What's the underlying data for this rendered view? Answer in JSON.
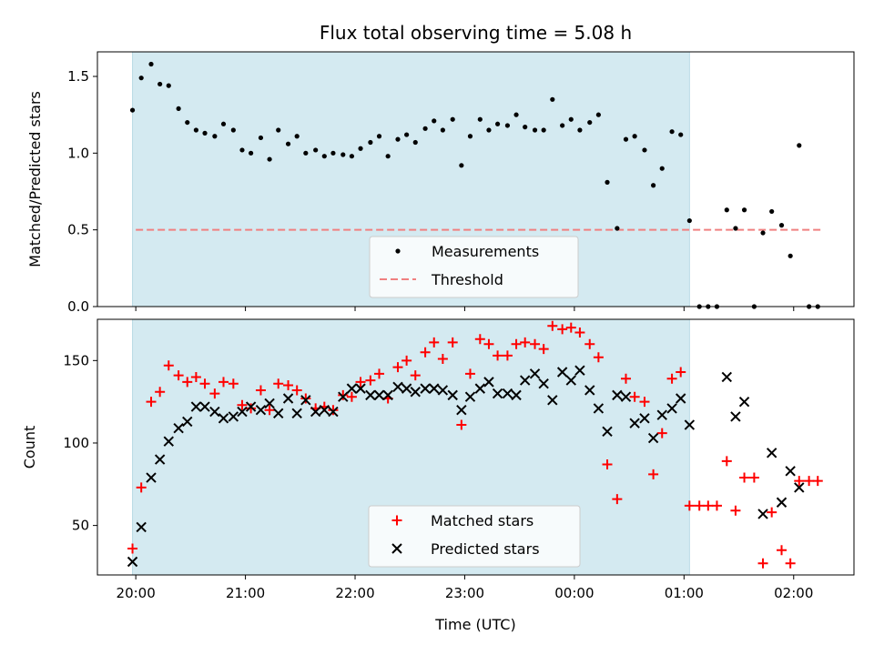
{
  "colors": {
    "span": "#d4eaf1",
    "threshold": "#f08080",
    "matched": "#ff0000",
    "predicted": "#000000",
    "points": "#000000"
  },
  "chart_data": [
    {
      "type": "scatter",
      "title": "Flux total observing time = 5.08 h",
      "ylabel": "Matched/Predicted stars",
      "xlabel": "",
      "x_unit": "hours since 20:00 UTC",
      "xlim": [
        -0.35,
        6.55
      ],
      "ylim": [
        0,
        1.66
      ],
      "yticks": [
        {
          "v": 0,
          "label": "0.0"
        },
        {
          "v": 0.5,
          "label": "0.5"
        },
        {
          "v": 1.0,
          "label": "1.0"
        },
        {
          "v": 1.5,
          "label": "1.5"
        }
      ],
      "xticks_hours": [
        0,
        1,
        2,
        3,
        4,
        5,
        6
      ],
      "observing_span": [
        -0.03,
        5.05
      ],
      "threshold": 0.5,
      "threshold_x": [
        0,
        6.25
      ],
      "legend": {
        "position": "bottom-center",
        "entries": [
          "Measurements",
          "Threshold"
        ]
      },
      "series": [
        {
          "name": "Measurements",
          "points": [
            [
              -0.03,
              1.28
            ],
            [
              0.05,
              1.49
            ],
            [
              0.14,
              1.58
            ],
            [
              0.22,
              1.45
            ],
            [
              0.3,
              1.44
            ],
            [
              0.39,
              1.29
            ],
            [
              0.47,
              1.2
            ],
            [
              0.55,
              1.15
            ],
            [
              0.63,
              1.13
            ],
            [
              0.72,
              1.11
            ],
            [
              0.8,
              1.19
            ],
            [
              0.89,
              1.15
            ],
            [
              0.97,
              1.02
            ],
            [
              1.05,
              1.0
            ],
            [
              1.14,
              1.1
            ],
            [
              1.22,
              0.96
            ],
            [
              1.3,
              1.15
            ],
            [
              1.39,
              1.06
            ],
            [
              1.47,
              1.11
            ],
            [
              1.55,
              1.0
            ],
            [
              1.64,
              1.02
            ],
            [
              1.72,
              0.98
            ],
            [
              1.8,
              1.0
            ],
            [
              1.89,
              0.99
            ],
            [
              1.97,
              0.98
            ],
            [
              2.05,
              1.03
            ],
            [
              2.14,
              1.07
            ],
            [
              2.22,
              1.11
            ],
            [
              2.3,
              0.98
            ],
            [
              2.39,
              1.09
            ],
            [
              2.47,
              1.12
            ],
            [
              2.55,
              1.07
            ],
            [
              2.64,
              1.16
            ],
            [
              2.72,
              1.21
            ],
            [
              2.8,
              1.15
            ],
            [
              2.89,
              1.22
            ],
            [
              2.97,
              0.92
            ],
            [
              3.05,
              1.11
            ],
            [
              3.14,
              1.22
            ],
            [
              3.22,
              1.15
            ],
            [
              3.3,
              1.19
            ],
            [
              3.39,
              1.18
            ],
            [
              3.47,
              1.25
            ],
            [
              3.55,
              1.17
            ],
            [
              3.64,
              1.15
            ],
            [
              3.72,
              1.15
            ],
            [
              3.8,
              1.35
            ],
            [
              3.89,
              1.18
            ],
            [
              3.97,
              1.22
            ],
            [
              4.05,
              1.15
            ],
            [
              4.14,
              1.2
            ],
            [
              4.22,
              1.25
            ],
            [
              4.3,
              0.81
            ],
            [
              4.39,
              0.51
            ],
            [
              4.47,
              1.09
            ],
            [
              4.55,
              1.11
            ],
            [
              4.64,
              1.02
            ],
            [
              4.72,
              0.79
            ],
            [
              4.8,
              0.9
            ],
            [
              4.89,
              1.14
            ],
            [
              4.97,
              1.12
            ],
            [
              5.05,
              0.56
            ],
            [
              5.14,
              0.0
            ],
            [
              5.22,
              0.0
            ],
            [
              5.3,
              0.0
            ],
            [
              5.39,
              0.63
            ],
            [
              5.47,
              0.51
            ],
            [
              5.55,
              0.63
            ],
            [
              5.64,
              0.0
            ],
            [
              5.72,
              0.48
            ],
            [
              5.8,
              0.62
            ],
            [
              5.89,
              0.53
            ],
            [
              5.97,
              0.33
            ],
            [
              6.05,
              1.05
            ],
            [
              6.14,
              0.0
            ],
            [
              6.22,
              0.0
            ]
          ]
        }
      ]
    },
    {
      "type": "scatter",
      "title": "",
      "ylabel": "Count",
      "xlabel": "Time (UTC)",
      "x_unit": "hours since 20:00 UTC",
      "xlim": [
        -0.35,
        6.55
      ],
      "ylim": [
        20,
        175
      ],
      "yticks": [
        {
          "v": 50,
          "label": "50"
        },
        {
          "v": 100,
          "label": "100"
        },
        {
          "v": 150,
          "label": "150"
        }
      ],
      "xtick_labels": [
        "20:00",
        "21:00",
        "22:00",
        "23:00",
        "00:00",
        "01:00",
        "02:00"
      ],
      "observing_span": [
        -0.03,
        5.05
      ],
      "legend": {
        "position": "bottom-center",
        "entries": [
          "Matched stars",
          "Predicted stars"
        ]
      },
      "series": [
        {
          "name": "Matched stars",
          "marker": "plus",
          "points": [
            [
              -0.03,
              36
            ],
            [
              0.05,
              73
            ],
            [
              0.14,
              125
            ],
            [
              0.22,
              131
            ],
            [
              0.3,
              147
            ],
            [
              0.39,
              141
            ],
            [
              0.47,
              137
            ],
            [
              0.55,
              140
            ],
            [
              0.63,
              136
            ],
            [
              0.72,
              130
            ],
            [
              0.8,
              137
            ],
            [
              0.89,
              136
            ],
            [
              0.97,
              123
            ],
            [
              1.05,
              121
            ],
            [
              1.14,
              132
            ],
            [
              1.22,
              120
            ],
            [
              1.3,
              136
            ],
            [
              1.39,
              135
            ],
            [
              1.47,
              132
            ],
            [
              1.55,
              127
            ],
            [
              1.64,
              121
            ],
            [
              1.72,
              122
            ],
            [
              1.8,
              120
            ],
            [
              1.89,
              129
            ],
            [
              1.97,
              128
            ],
            [
              2.05,
              137
            ],
            [
              2.14,
              138
            ],
            [
              2.22,
              142
            ],
            [
              2.3,
              127
            ],
            [
              2.39,
              146
            ],
            [
              2.47,
              150
            ],
            [
              2.55,
              141
            ],
            [
              2.64,
              155
            ],
            [
              2.72,
              161
            ],
            [
              2.8,
              151
            ],
            [
              2.89,
              161
            ],
            [
              2.97,
              111
            ],
            [
              3.05,
              142
            ],
            [
              3.14,
              163
            ],
            [
              3.22,
              160
            ],
            [
              3.3,
              153
            ],
            [
              3.39,
              153
            ],
            [
              3.47,
              160
            ],
            [
              3.55,
              161
            ],
            [
              3.64,
              160
            ],
            [
              3.72,
              157
            ],
            [
              3.8,
              171
            ],
            [
              3.89,
              169
            ],
            [
              3.97,
              170
            ],
            [
              4.05,
              167
            ],
            [
              4.14,
              160
            ],
            [
              4.22,
              152
            ],
            [
              4.3,
              87
            ],
            [
              4.39,
              66
            ],
            [
              4.47,
              139
            ],
            [
              4.55,
              128
            ],
            [
              4.64,
              125
            ],
            [
              4.72,
              81
            ],
            [
              4.8,
              106
            ],
            [
              4.89,
              139
            ],
            [
              4.97,
              143
            ],
            [
              5.05,
              62
            ],
            [
              5.14,
              62
            ],
            [
              5.22,
              62
            ],
            [
              5.3,
              62
            ],
            [
              5.39,
              89
            ],
            [
              5.47,
              59
            ],
            [
              5.55,
              79
            ],
            [
              5.64,
              79
            ],
            [
              5.72,
              27
            ],
            [
              5.8,
              58
            ],
            [
              5.89,
              35
            ],
            [
              5.97,
              27
            ],
            [
              6.05,
              77
            ],
            [
              6.14,
              77
            ],
            [
              6.22,
              77
            ]
          ]
        },
        {
          "name": "Predicted stars",
          "marker": "x",
          "points": [
            [
              -0.03,
              28
            ],
            [
              0.05,
              49
            ],
            [
              0.14,
              79
            ],
            [
              0.22,
              90
            ],
            [
              0.3,
              101
            ],
            [
              0.39,
              109
            ],
            [
              0.47,
              113
            ],
            [
              0.55,
              122
            ],
            [
              0.63,
              122
            ],
            [
              0.72,
              119
            ],
            [
              0.8,
              115
            ],
            [
              0.89,
              116
            ],
            [
              0.97,
              119
            ],
            [
              1.05,
              122
            ],
            [
              1.14,
              120
            ],
            [
              1.22,
              124
            ],
            [
              1.3,
              118
            ],
            [
              1.39,
              127
            ],
            [
              1.47,
              118
            ],
            [
              1.55,
              126
            ],
            [
              1.64,
              119
            ],
            [
              1.72,
              120
            ],
            [
              1.8,
              119
            ],
            [
              1.89,
              128
            ],
            [
              1.97,
              133
            ],
            [
              2.05,
              133
            ],
            [
              2.14,
              129
            ],
            [
              2.22,
              129
            ],
            [
              2.3,
              129
            ],
            [
              2.39,
              134
            ],
            [
              2.47,
              133
            ],
            [
              2.55,
              131
            ],
            [
              2.64,
              133
            ],
            [
              2.72,
              133
            ],
            [
              2.8,
              132
            ],
            [
              2.89,
              129
            ],
            [
              2.97,
              120
            ],
            [
              3.05,
              128
            ],
            [
              3.14,
              133
            ],
            [
              3.22,
              137
            ],
            [
              3.3,
              130
            ],
            [
              3.39,
              130
            ],
            [
              3.47,
              129
            ],
            [
              3.55,
              138
            ],
            [
              3.64,
              142
            ],
            [
              3.72,
              136
            ],
            [
              3.8,
              126
            ],
            [
              3.89,
              143
            ],
            [
              3.97,
              138
            ],
            [
              4.05,
              144
            ],
            [
              4.14,
              132
            ],
            [
              4.22,
              121
            ],
            [
              4.3,
              107
            ],
            [
              4.39,
              129
            ],
            [
              4.47,
              128
            ],
            [
              4.55,
              112
            ],
            [
              4.64,
              115
            ],
            [
              4.72,
              103
            ],
            [
              4.8,
              117
            ],
            [
              4.89,
              121
            ],
            [
              4.97,
              127
            ],
            [
              5.05,
              111
            ],
            [
              5.39,
              140
            ],
            [
              5.47,
              116
            ],
            [
              5.55,
              125
            ],
            [
              5.72,
              57
            ],
            [
              5.8,
              94
            ],
            [
              5.89,
              64
            ],
            [
              5.97,
              83
            ],
            [
              6.05,
              73
            ]
          ]
        }
      ]
    }
  ]
}
